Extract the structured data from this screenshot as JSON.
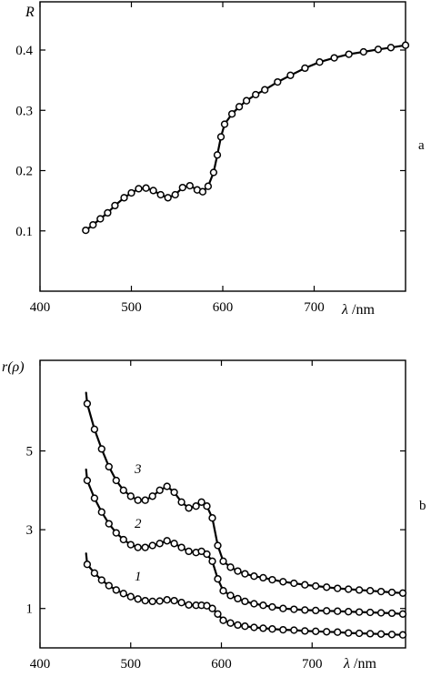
{
  "chart_data": [
    {
      "type": "line",
      "panel": "a",
      "ylabel": "R",
      "xlabel_symbol": "λ",
      "xlabel_unit": "/nm",
      "xlim": [
        400,
        800
      ],
      "ylim": [
        0.0,
        0.48
      ],
      "x_ticks": [
        "400",
        "500",
        "600",
        "700"
      ],
      "x_tick_values": [
        400,
        500,
        600,
        700
      ],
      "y_ticks": [
        "0.1",
        "0.2",
        "0.3",
        "0.4"
      ],
      "y_tick_values": [
        0.1,
        0.2,
        0.3,
        0.4
      ],
      "series": [
        {
          "x": [
            450,
            458,
            466,
            474,
            482,
            492,
            500,
            508,
            516,
            524,
            532,
            540,
            548,
            556,
            564,
            572,
            578,
            584,
            590,
            594,
            598,
            602,
            610,
            618,
            626,
            636,
            646,
            660,
            674,
            690,
            706,
            722,
            738,
            754,
            770,
            784,
            800
          ],
          "y": [
            0.101,
            0.11,
            0.12,
            0.13,
            0.142,
            0.155,
            0.163,
            0.17,
            0.171,
            0.167,
            0.16,
            0.155,
            0.16,
            0.172,
            0.175,
            0.168,
            0.165,
            0.174,
            0.197,
            0.226,
            0.256,
            0.277,
            0.294,
            0.306,
            0.316,
            0.326,
            0.334,
            0.347,
            0.358,
            0.37,
            0.38,
            0.387,
            0.393,
            0.397,
            0.401,
            0.404,
            0.408
          ]
        }
      ]
    },
    {
      "type": "line",
      "panel": "b",
      "ylabel": "r(ρ)",
      "xlabel_symbol": "λ",
      "xlabel_unit": "/nm",
      "xlim": [
        400,
        803
      ],
      "ylim": [
        0,
        7.3
      ],
      "x_ticks": [
        "400",
        "500",
        "600",
        "700"
      ],
      "x_tick_values": [
        400,
        500,
        600,
        700
      ],
      "y_ticks": [
        "1",
        "3",
        "5"
      ],
      "y_tick_values": [
        1,
        3,
        5
      ],
      "series": [
        {
          "name": "1",
          "x": [
            452,
            460,
            468,
            476,
            484,
            492,
            500,
            508,
            516,
            524,
            532,
            540,
            548,
            556,
            564,
            572,
            578,
            584,
            590,
            596,
            602,
            610,
            618,
            626,
            636,
            646,
            656,
            668,
            680,
            692,
            704,
            716,
            728,
            740,
            752,
            764,
            776,
            788,
            800
          ],
          "y": [
            2.12,
            1.9,
            1.72,
            1.58,
            1.47,
            1.38,
            1.3,
            1.24,
            1.2,
            1.18,
            1.19,
            1.22,
            1.2,
            1.15,
            1.09,
            1.08,
            1.08,
            1.07,
            1.0,
            0.86,
            0.7,
            0.63,
            0.58,
            0.55,
            0.52,
            0.5,
            0.48,
            0.46,
            0.45,
            0.43,
            0.42,
            0.41,
            0.4,
            0.38,
            0.37,
            0.36,
            0.35,
            0.34,
            0.33
          ]
        },
        {
          "name": "2",
          "x": [
            452,
            460,
            468,
            476,
            484,
            492,
            500,
            508,
            516,
            524,
            532,
            540,
            548,
            556,
            564,
            572,
            578,
            584,
            590,
            596,
            602,
            610,
            618,
            626,
            636,
            646,
            656,
            668,
            680,
            692,
            704,
            716,
            728,
            740,
            752,
            764,
            776,
            788,
            800
          ],
          "y": [
            4.25,
            3.8,
            3.45,
            3.15,
            2.92,
            2.75,
            2.62,
            2.55,
            2.55,
            2.6,
            2.65,
            2.72,
            2.65,
            2.55,
            2.45,
            2.42,
            2.45,
            2.38,
            2.2,
            1.75,
            1.45,
            1.33,
            1.25,
            1.18,
            1.12,
            1.08,
            1.04,
            1.0,
            0.98,
            0.96,
            0.95,
            0.94,
            0.93,
            0.92,
            0.91,
            0.9,
            0.89,
            0.88,
            0.86
          ]
        },
        {
          "name": "3",
          "x": [
            452,
            460,
            468,
            476,
            484,
            492,
            500,
            508,
            516,
            524,
            532,
            540,
            548,
            556,
            564,
            572,
            578,
            584,
            590,
            596,
            602,
            610,
            618,
            626,
            636,
            646,
            656,
            668,
            680,
            692,
            704,
            716,
            728,
            740,
            752,
            764,
            776,
            788,
            800
          ],
          "y": [
            6.2,
            5.55,
            5.05,
            4.6,
            4.25,
            4.0,
            3.85,
            3.75,
            3.75,
            3.85,
            4.0,
            4.1,
            3.95,
            3.7,
            3.55,
            3.6,
            3.7,
            3.6,
            3.3,
            2.6,
            2.2,
            2.05,
            1.95,
            1.88,
            1.82,
            1.78,
            1.73,
            1.68,
            1.64,
            1.6,
            1.57,
            1.54,
            1.51,
            1.49,
            1.47,
            1.45,
            1.43,
            1.41,
            1.39
          ]
        }
      ]
    }
  ],
  "panel_letters": {
    "a": "a",
    "b": "b"
  }
}
